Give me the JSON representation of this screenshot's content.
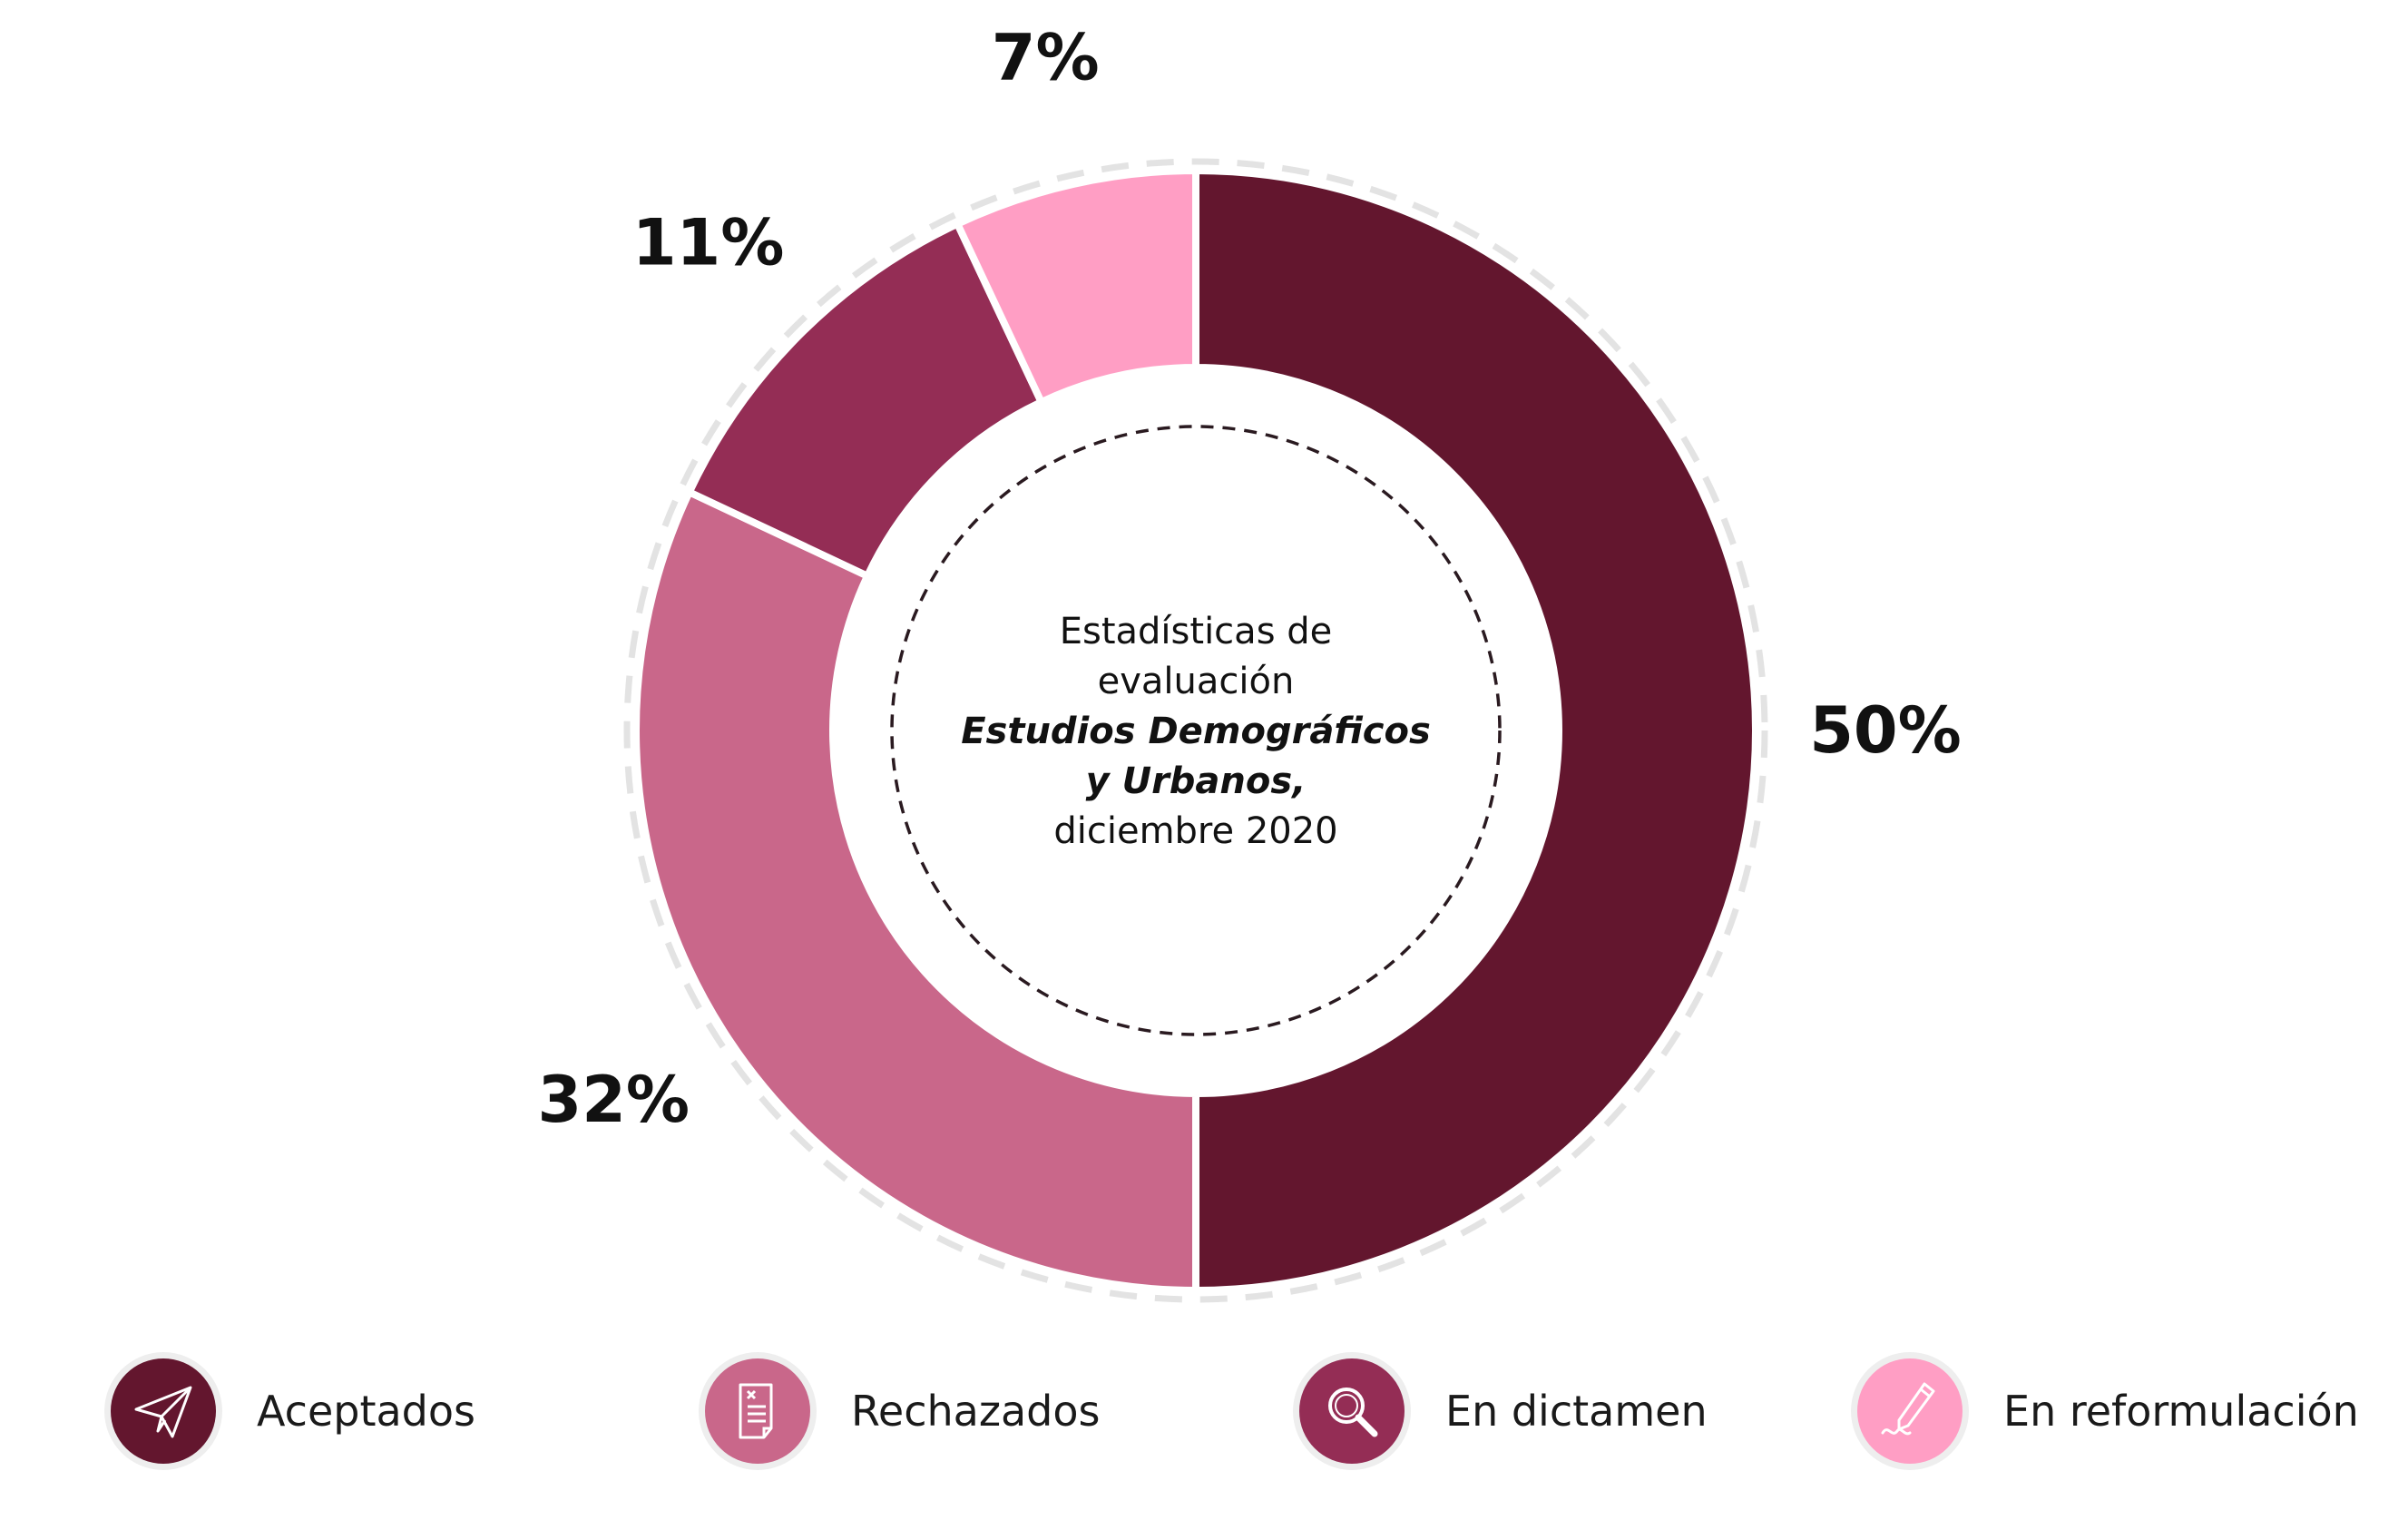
{
  "chart_data": {
    "type": "pie",
    "style": "donut",
    "title_lines": [
      {
        "text": "Estadísticas de",
        "emphasis": false
      },
      {
        "text": "evaluación",
        "emphasis": false
      },
      {
        "text": "Estudios Demográficos",
        "emphasis": true
      },
      {
        "text": "y Urbanos,",
        "emphasis": true
      },
      {
        "text": "diciembre 2020",
        "emphasis": false
      }
    ],
    "slices": [
      {
        "label": "Aceptados",
        "value": 50,
        "display": "50%",
        "color": "#63162e",
        "icon": "paper-plane-icon"
      },
      {
        "label": "Rechazados",
        "value": 32,
        "display": "32%",
        "color": "#c9678a",
        "icon": "document-x-icon"
      },
      {
        "label": "En dictamen",
        "value": 11,
        "display": "11%",
        "color": "#942d55",
        "icon": "magnifier-icon"
      },
      {
        "label": "En reformulación",
        "value": 7,
        "display": "7%",
        "color": "#ff9ec4",
        "icon": "pen-signature-icon"
      }
    ]
  }
}
